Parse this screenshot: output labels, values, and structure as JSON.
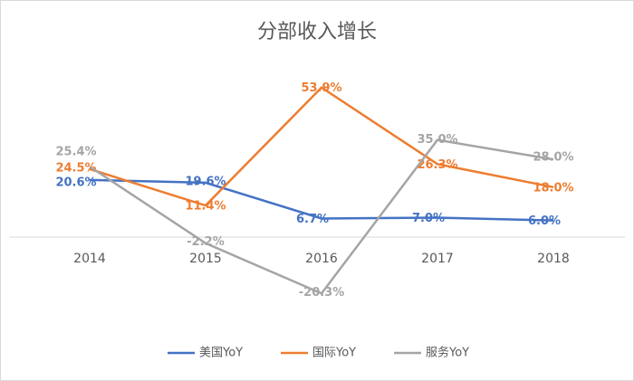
{
  "chart_data": {
    "type": "line",
    "title": "分部收入增长",
    "categories": [
      "2014",
      "2015",
      "2016",
      "2017",
      "2018"
    ],
    "series": [
      {
        "name": "美国YoY",
        "color": "#4472c4",
        "values": [
          20.6,
          19.6,
          6.7,
          7.0,
          6.0
        ],
        "value_labels": [
          "20.6%",
          "19.6%",
          "6.7%",
          "7.0%",
          "6.0%"
        ]
      },
      {
        "name": "国际YoY",
        "color": "#ed7d31",
        "values": [
          24.5,
          11.4,
          53.9,
          26.3,
          18.0
        ],
        "value_labels": [
          "24.5%",
          "11.4%",
          "53.9%",
          "26.3%",
          "18.0%"
        ]
      },
      {
        "name": "服务YoY",
        "color": "#a5a5a5",
        "values": [
          25.4,
          -2.2,
          -20.3,
          35.0,
          28.0
        ],
        "value_labels": [
          "25.4%",
          "-2.2%",
          "-20.3%",
          "35.0%",
          "28.0%"
        ]
      }
    ],
    "ylim": [
      -30,
      60
    ],
    "legend": "bottom"
  }
}
